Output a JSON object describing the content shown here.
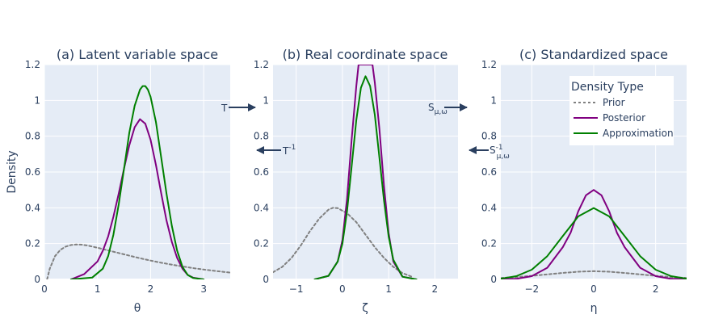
{
  "chart_data": [
    {
      "type": "line",
      "title": "(a) Latent variable space",
      "xlabel": "θ",
      "ylabel": "Density",
      "xlim": [
        0,
        3.5
      ],
      "ylim": [
        0,
        1.2
      ],
      "xticks": [
        "0",
        "1",
        "2",
        "3"
      ],
      "yticks": [
        "0",
        "0.2",
        "0.4",
        "0.6",
        "0.8",
        "1",
        "1.2"
      ],
      "series": [
        {
          "name": "Prior",
          "dash": "dot",
          "color": "#808080",
          "x": [
            0.05,
            0.1,
            0.2,
            0.3,
            0.4,
            0.5,
            0.6,
            0.7,
            0.8,
            1.0,
            1.2,
            1.5,
            1.8,
            2.0,
            2.2,
            2.5,
            2.8,
            3.0,
            3.2,
            3.5
          ],
          "y": [
            0.0,
            0.06,
            0.13,
            0.165,
            0.183,
            0.192,
            0.195,
            0.194,
            0.19,
            0.177,
            0.162,
            0.14,
            0.118,
            0.105,
            0.093,
            0.077,
            0.063,
            0.055,
            0.048,
            0.038
          ]
        },
        {
          "name": "Posterior",
          "color": "#800080",
          "x": [
            0.5,
            0.75,
            1.0,
            1.1,
            1.2,
            1.3,
            1.4,
            1.5,
            1.6,
            1.7,
            1.8,
            1.9,
            2.0,
            2.1,
            2.2,
            2.3,
            2.4,
            2.5,
            2.6,
            2.7,
            2.8,
            3.0
          ],
          "y": [
            0.0,
            0.03,
            0.1,
            0.16,
            0.24,
            0.35,
            0.48,
            0.62,
            0.75,
            0.85,
            0.895,
            0.87,
            0.78,
            0.64,
            0.48,
            0.33,
            0.21,
            0.12,
            0.06,
            0.025,
            0.01,
            0.0
          ]
        },
        {
          "name": "Approximation",
          "color": "#008000",
          "x": [
            0.5,
            0.9,
            1.1,
            1.2,
            1.3,
            1.4,
            1.5,
            1.6,
            1.7,
            1.8,
            1.85,
            1.9,
            1.95,
            2.0,
            2.1,
            2.2,
            2.3,
            2.4,
            2.5,
            2.6,
            2.7,
            2.8,
            3.0
          ],
          "y": [
            0.0,
            0.01,
            0.06,
            0.13,
            0.25,
            0.42,
            0.62,
            0.82,
            0.97,
            1.06,
            1.08,
            1.08,
            1.06,
            1.02,
            0.88,
            0.68,
            0.48,
            0.3,
            0.16,
            0.07,
            0.025,
            0.008,
            0.0
          ]
        }
      ]
    },
    {
      "type": "line",
      "title": "(b) Real coordinate space",
      "xlabel": "ζ",
      "xlim": [
        -1.5,
        2.5
      ],
      "ylim": [
        0,
        1.2
      ],
      "xticks": [
        "−1",
        "0",
        "1",
        "2"
      ],
      "yticks": [
        "0",
        "0.2",
        "0.4",
        "0.6",
        "0.8",
        "1",
        "1.2"
      ],
      "series": [
        {
          "name": "Prior",
          "dash": "dot",
          "color": "#808080",
          "x": [
            -1.5,
            -1.3,
            -1.1,
            -0.9,
            -0.7,
            -0.5,
            -0.3,
            -0.2,
            -0.1,
            0.1,
            0.3,
            0.5,
            0.7,
            0.9,
            1.1,
            1.3,
            1.5
          ],
          "y": [
            0.04,
            0.07,
            0.12,
            0.19,
            0.27,
            0.34,
            0.39,
            0.4,
            0.398,
            0.37,
            0.32,
            0.25,
            0.18,
            0.12,
            0.07,
            0.035,
            0.015
          ]
        },
        {
          "name": "Posterior",
          "color": "#800080",
          "x": [
            -0.6,
            -0.3,
            -0.1,
            0.0,
            0.1,
            0.2,
            0.3,
            0.35,
            0.4,
            0.5,
            0.6,
            0.65,
            0.7,
            0.8,
            0.9,
            1.0,
            1.1,
            1.3,
            1.6
          ],
          "y": [
            0.0,
            0.02,
            0.1,
            0.22,
            0.45,
            0.78,
            1.08,
            1.2,
            1.2,
            1.2,
            1.2,
            1.2,
            1.1,
            0.84,
            0.52,
            0.26,
            0.1,
            0.015,
            0.0
          ]
        },
        {
          "name": "Approximation",
          "color": "#008000",
          "x": [
            -0.6,
            -0.3,
            -0.1,
            0.0,
            0.1,
            0.2,
            0.3,
            0.4,
            0.5,
            0.6,
            0.7,
            0.8,
            0.9,
            1.0,
            1.1,
            1.3,
            1.6
          ],
          "y": [
            0.0,
            0.02,
            0.1,
            0.2,
            0.38,
            0.63,
            0.89,
            1.07,
            1.135,
            1.08,
            0.92,
            0.68,
            0.44,
            0.24,
            0.11,
            0.015,
            0.0
          ]
        }
      ]
    },
    {
      "type": "line",
      "title": "(c) Standardized space",
      "xlabel": "η",
      "xlim": [
        -3,
        3
      ],
      "ylim": [
        0,
        1.2
      ],
      "xticks": [
        "−2",
        "0",
        "2"
      ],
      "yticks": [
        "0",
        "0.2",
        "0.4",
        "0.6",
        "0.8",
        "1",
        "1.2"
      ],
      "legend": {
        "title": "Density Type",
        "placement": "top-right",
        "entries": [
          "Prior",
          "Posterior",
          "Approximation"
        ]
      },
      "series": [
        {
          "name": "Prior",
          "dash": "dot",
          "color": "#808080",
          "x": [
            -3,
            -2.5,
            -2,
            -1.5,
            -1,
            -0.5,
            0,
            0.5,
            1,
            1.5,
            2,
            2.5,
            3
          ],
          "y": [
            0.008,
            0.013,
            0.02,
            0.028,
            0.036,
            0.043,
            0.046,
            0.043,
            0.036,
            0.028,
            0.02,
            0.013,
            0.008
          ]
        },
        {
          "name": "Posterior",
          "color": "#800080",
          "x": [
            -3,
            -2.5,
            -2,
            -1.5,
            -1,
            -0.75,
            -0.5,
            -0.25,
            0,
            0.25,
            0.5,
            0.75,
            1,
            1.5,
            2,
            2.5,
            3
          ],
          "y": [
            0.0,
            0.003,
            0.018,
            0.065,
            0.18,
            0.26,
            0.38,
            0.47,
            0.5,
            0.47,
            0.38,
            0.26,
            0.18,
            0.065,
            0.018,
            0.003,
            0.0
          ]
        },
        {
          "name": "Approximation",
          "color": "#008000",
          "x": [
            -3,
            -2.5,
            -2,
            -1.5,
            -1,
            -0.5,
            0,
            0.5,
            1,
            1.5,
            2,
            2.5,
            3
          ],
          "y": [
            0.004,
            0.018,
            0.054,
            0.13,
            0.242,
            0.352,
            0.399,
            0.352,
            0.242,
            0.13,
            0.054,
            0.018,
            0.004
          ]
        }
      ]
    }
  ],
  "annotations": {
    "T": "T",
    "T_inv_base": "T",
    "T_inv_sup": "-1",
    "S_base": "S",
    "S_sub": "μ,ω",
    "S_inv_base": "S",
    "S_inv_sup": "-1",
    "S_inv_sub": "μ,ω"
  },
  "colors": {
    "plot_bg": "#e5ecf6",
    "grid": "#ffffff",
    "arrow": "#2a3f5f"
  }
}
